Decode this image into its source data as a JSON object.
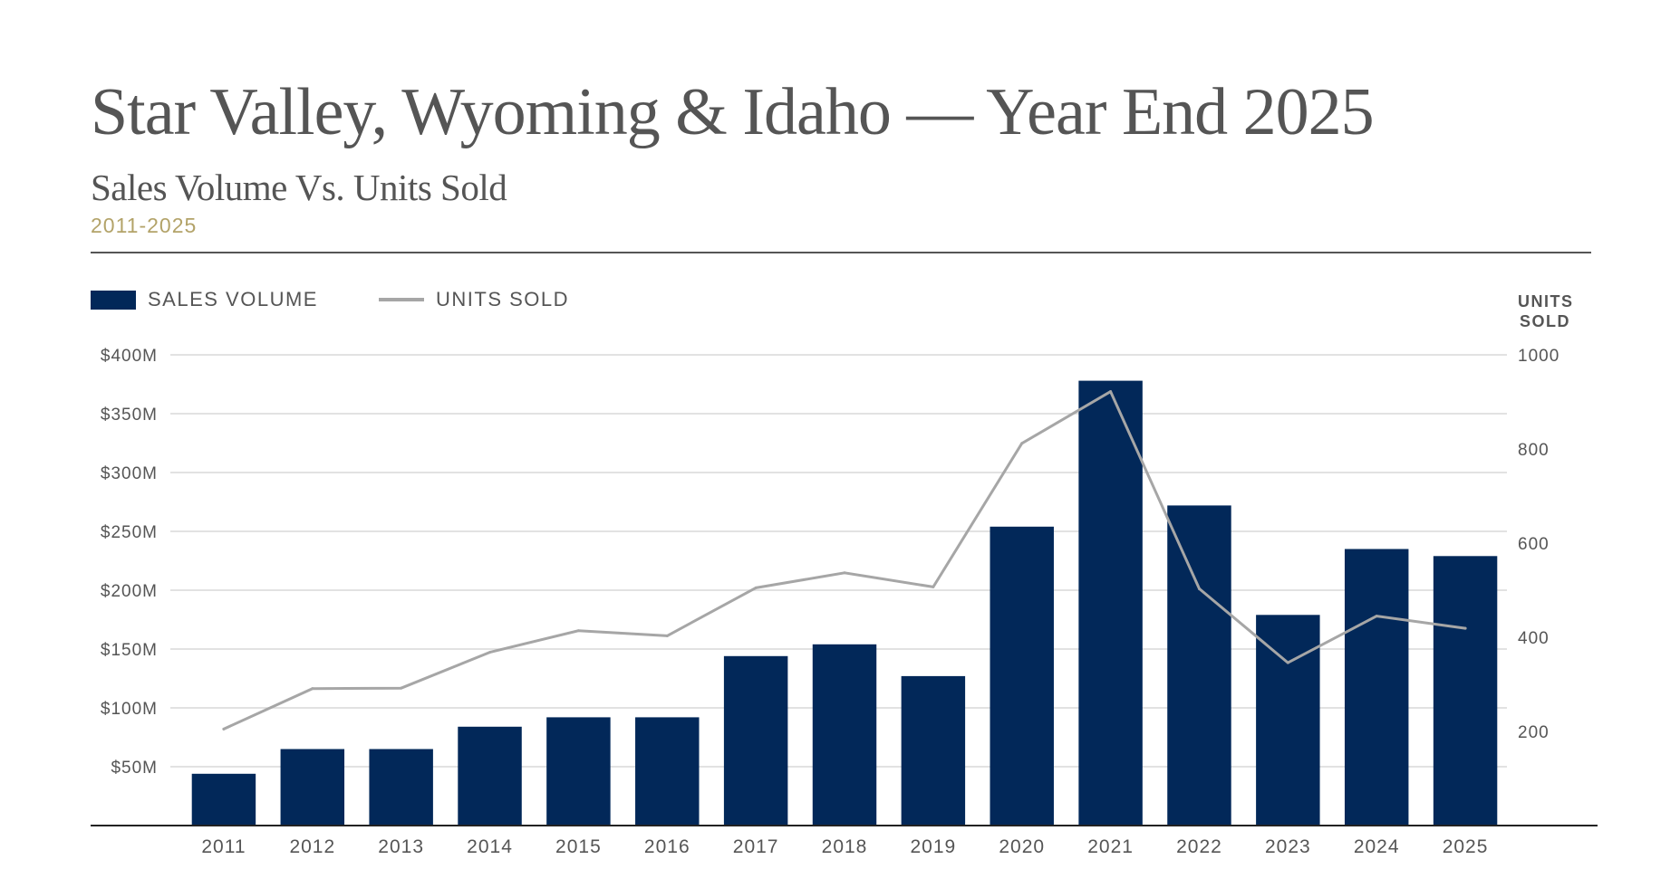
{
  "header": {
    "title": "Star Valley, Wyoming & Idaho — Year End 2025",
    "subtitle": "Sales Volume Vs. Units Sold",
    "range": "2011-2025"
  },
  "colors": {
    "bar": "#022859",
    "line": "#a6a6a6",
    "grid": "#d9d9d9",
    "axis_text": "#555555",
    "accent": "#b3a369"
  },
  "chart_data": {
    "type": "bar",
    "categories": [
      "2011",
      "2012",
      "2013",
      "2014",
      "2015",
      "2016",
      "2017",
      "2018",
      "2019",
      "2020",
      "2021",
      "2022",
      "2023",
      "2024",
      "2025"
    ],
    "series": [
      {
        "name": "SALES VOLUME",
        "type": "bar",
        "axis": "left",
        "values": [
          44,
          65,
          65,
          84,
          92,
          92,
          144,
          154,
          127,
          254,
          378,
          272,
          179,
          235,
          229
        ]
      },
      {
        "name": "UNITS SOLD",
        "type": "line",
        "axis": "right",
        "values": [
          205,
          291,
          292,
          368,
          414,
          403,
          505,
          537,
          507,
          812,
          922,
          503,
          346,
          445,
          419
        ]
      }
    ],
    "legend": [
      {
        "label": "SALES VOLUME",
        "kind": "bar"
      },
      {
        "label": "UNITS SOLD",
        "kind": "line"
      }
    ],
    "left_axis": {
      "ylim": [
        0,
        400
      ],
      "ticks": [
        50,
        100,
        150,
        200,
        250,
        300,
        350,
        400
      ],
      "tick_labels": [
        "$50M",
        "$100M",
        "$150M",
        "$200M",
        "$250M",
        "$300M",
        "$350M",
        "$400M"
      ]
    },
    "right_axis": {
      "title_lines": [
        "UNITS",
        "SOLD"
      ],
      "ylim": [
        0,
        1000
      ],
      "ticks": [
        200,
        400,
        600,
        800,
        1000
      ],
      "tick_labels": [
        "200",
        "400",
        "600",
        "800",
        "1000"
      ]
    },
    "grid": true,
    "legend_position": "top-left"
  }
}
